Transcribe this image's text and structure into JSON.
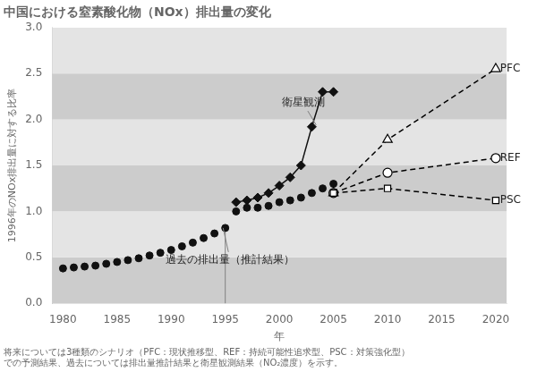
{
  "chart_data": {
    "type": "line",
    "title": "中国における窒素酸化物（NOx）排出量の変化",
    "xlabel": "年",
    "ylabel": "1996年のNOx排出量に対する比率",
    "footnote": [
      "将来については3種類のシナリオ（PFC：現状推移型、REF：持続可能性追求型、PSC：対策強化型）",
      "での予測結果、過去については排出量推計結果と衛星観測結果（NO₂濃度）を示す。"
    ],
    "xlim": [
      1979,
      2021
    ],
    "ylim": [
      0.0,
      3.0
    ],
    "xticks": [
      1980,
      1985,
      1990,
      1995,
      2000,
      2005,
      2010,
      2015,
      2020
    ],
    "yticks": [
      {
        "value": 0.0,
        "label": "0.0"
      },
      0.5,
      {
        "value": 1.0,
        "label": "1.0"
      },
      1.5,
      {
        "value": 2.0,
        "label": "2.0"
      },
      2.5,
      {
        "value": 3.0,
        "label": "3.0"
      }
    ],
    "grid": false,
    "bands": [
      {
        "ymin": 0.0,
        "ymax": 0.5,
        "color": "#cccccc"
      },
      {
        "ymin": 0.5,
        "ymax": 1.0,
        "color": "#e4e4e4"
      },
      {
        "ymin": 1.0,
        "ymax": 1.5,
        "color": "#cccccc"
      },
      {
        "ymin": 1.5,
        "ymax": 2.0,
        "color": "#e4e4e4"
      },
      {
        "ymin": 2.0,
        "ymax": 2.5,
        "color": "#cccccc"
      },
      {
        "ymin": 2.5,
        "ymax": 3.0,
        "color": "#e4e4e4"
      }
    ],
    "series": [
      {
        "color": "#111111",
        "marker": "circle",
        "line_style": "none",
        "x": [
          1980,
          1981,
          1982,
          1983,
          1984,
          1985,
          1986,
          1987,
          1988,
          1989,
          1990,
          1991,
          1992,
          1993,
          1994,
          1995,
          1996,
          1997,
          1998,
          1999,
          2000,
          2001,
          2002,
          2003,
          2004,
          2005
        ],
        "values": [
          0.38,
          0.39,
          0.4,
          0.41,
          0.43,
          0.45,
          0.47,
          0.49,
          0.52,
          0.55,
          0.58,
          0.62,
          0.66,
          0.71,
          0.76,
          0.82,
          1.0,
          1.04,
          1.04,
          1.06,
          1.1,
          1.12,
          1.15,
          1.2,
          1.25,
          1.3
        ]
      },
      {
        "color": "#111111",
        "marker": "diamond",
        "line_style": "solid",
        "x": [
          1996,
          1997,
          1998,
          1999,
          2000,
          2001,
          2002,
          2003,
          2004,
          2005
        ],
        "values": [
          1.1,
          1.12,
          1.15,
          1.2,
          1.28,
          1.37,
          1.5,
          1.92,
          2.3,
          2.3
        ]
      },
      {
        "color": "black",
        "marker": "open_triangle",
        "line_style": "dashed",
        "x": [
          2005,
          2010,
          2020
        ],
        "values": [
          1.2,
          1.78,
          2.55
        ]
      },
      {
        "color": "black",
        "marker": "open_circle",
        "line_style": "dashed",
        "x": [
          2005,
          2010,
          2020
        ],
        "values": [
          1.2,
          1.42,
          1.58
        ]
      },
      {
        "color": "black",
        "marker": "open_square",
        "line_style": "dashed",
        "x": [
          2005,
          2010,
          2020
        ],
        "values": [
          1.2,
          1.25,
          1.12
        ]
      }
    ],
    "reference_lines": [
      {
        "x": 1995,
        "y_to": 0.82,
        "color": "gray"
      }
    ],
    "annotations": [
      {
        "text": "PFC",
        "x": 2020.4,
        "y": 2.55
      },
      {
        "text": "REF",
        "x": 2020.4,
        "y": 1.58
      },
      {
        "text": "PSC",
        "x": 2020.4,
        "y": 1.12
      },
      {
        "text": "衛星観測",
        "x": 2000.2,
        "y": 2.18,
        "arrow_to": [
          2003.4,
          1.94
        ]
      },
      {
        "text": "過去の排出量（推計結果）",
        "x": 1989.5,
        "y": 0.47,
        "arrow_to": [
          1994.8,
          0.82
        ]
      }
    ]
  }
}
